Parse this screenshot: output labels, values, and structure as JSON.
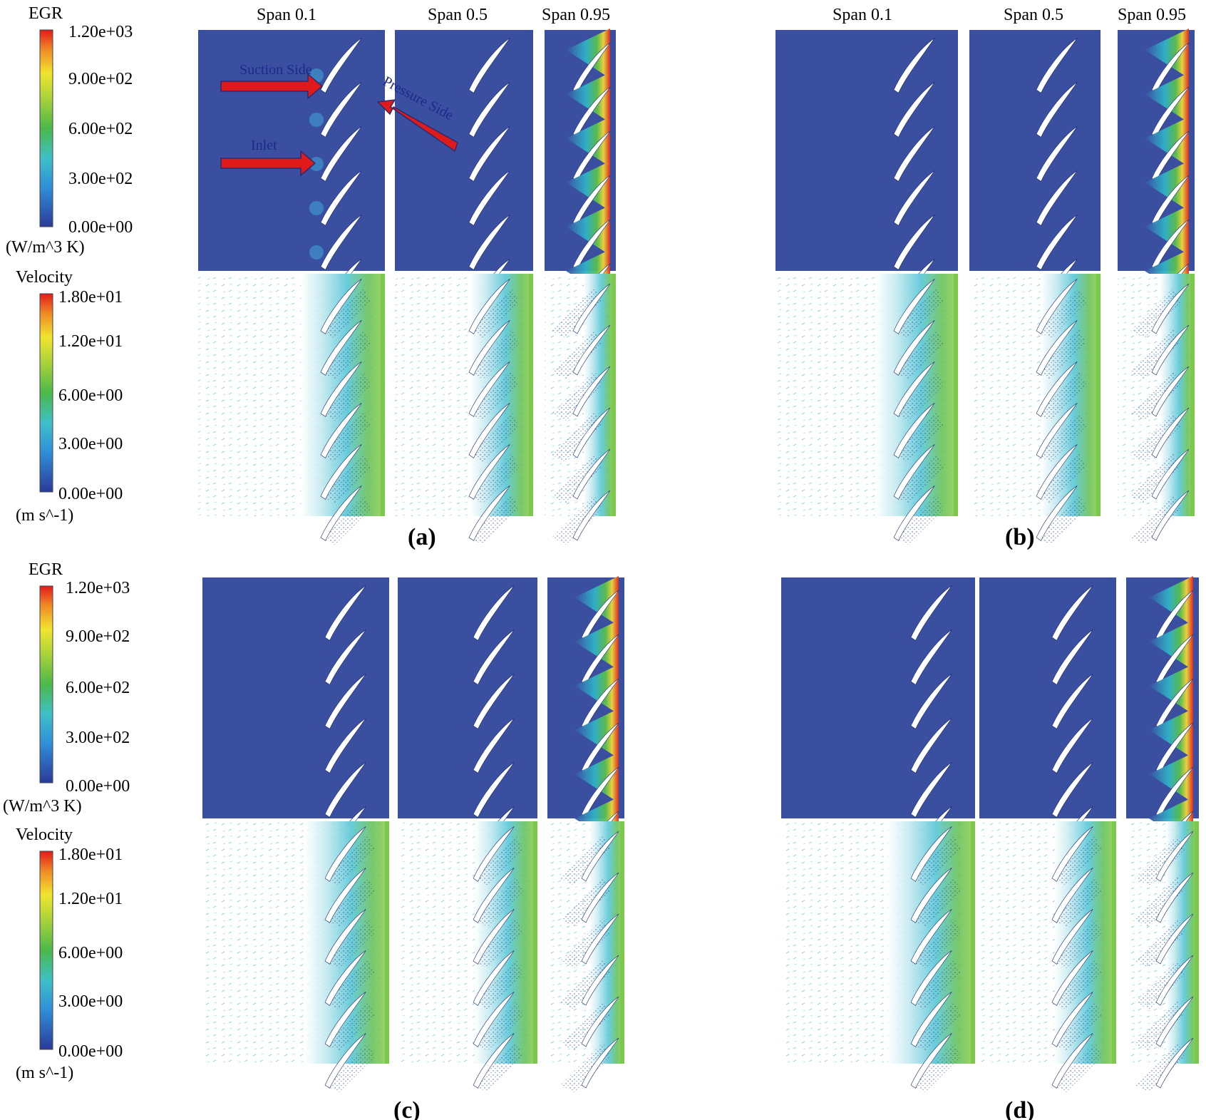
{
  "figure": {
    "span_labels": [
      "Span 0.1",
      "Span 0.5",
      "Span 0.95"
    ],
    "panel_labels": [
      "(a)",
      "(b)",
      "(c)",
      "(d)"
    ],
    "colorbars": {
      "egr": {
        "title": "EGR",
        "unit": "(W/m^3 K)",
        "ticks": [
          "1.20e+03",
          "9.00e+02",
          "6.00e+02",
          "3.00e+02",
          "0.00e+00"
        ],
        "range": [
          0,
          1200
        ]
      },
      "velocity": {
        "title": "Velocity",
        "unit": "(m s^-1)",
        "ticks": [
          "1.80e+01",
          "1.20e+01",
          "6.00e+00",
          "3.00e+00",
          "0.00e+00"
        ],
        "range": [
          0,
          18
        ]
      }
    },
    "annotations": {
      "suction_side": "Suction Side",
      "pressure_side": "Pressure Side",
      "inlet": "Inlet"
    },
    "colors": {
      "background_blue": "#3a4fa0",
      "blade": "#ffffff",
      "annotation_arrow": "#e0191b",
      "annotation_outline": "#2b2b6e"
    }
  }
}
